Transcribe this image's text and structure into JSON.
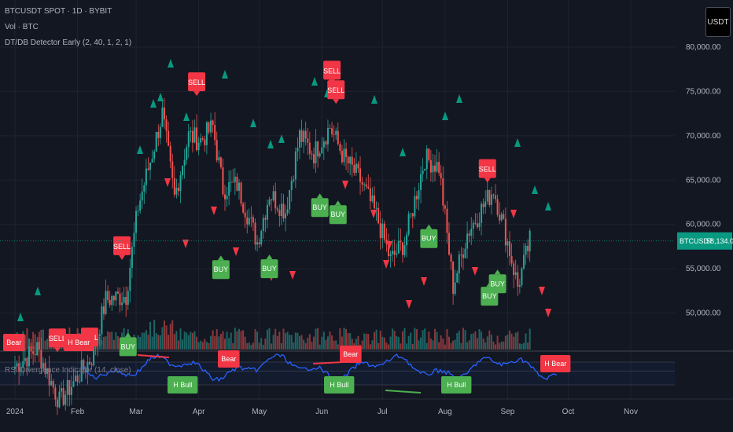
{
  "legend": {
    "symbol": "BTCUSDT SPOT · 1D · BYBIT",
    "volume": "Vol · BTC",
    "indicator": "DT/DB Detector Early (2, 40, 1, 2, 1)",
    "rsi": "RSI Divergence Indicator (14, close)"
  },
  "currency_button": "USDT",
  "price_tag": {
    "symbol": "BTCUSDT",
    "price": "58,134.02",
    "value": 58134.02
  },
  "colors": {
    "up": "#26a69a",
    "down": "#ef5350",
    "signal_green": "#4caf50",
    "signal_red": "#f23645",
    "rsi_line": "#2962ff",
    "tag": "#089981"
  },
  "chart_data": {
    "type": "candlestick",
    "title": "",
    "ylim": [
      45000,
      80000
    ],
    "y_ticks": [
      50000,
      55000,
      60000,
      65000,
      70000,
      75000,
      80000
    ],
    "y_tick_labels": [
      "50,000.00",
      "55,000.00",
      "60,000.00",
      "65,000.00",
      "70,000.00",
      "75,000.00",
      "80,000.00"
    ],
    "x_range": [
      "2024-01-01",
      "2024-11-15"
    ],
    "x_ticks": [
      {
        "date": "2024-01-01",
        "label": "2024"
      },
      {
        "date": "2024-02-01",
        "label": "Feb"
      },
      {
        "date": "2024-03-01",
        "label": "Mar"
      },
      {
        "date": "2024-04-01",
        "label": "Apr"
      },
      {
        "date": "2024-05-01",
        "label": "May"
      },
      {
        "date": "2024-06-01",
        "label": "Jun"
      },
      {
        "date": "2024-07-01",
        "label": "Jul"
      },
      {
        "date": "2024-08-01",
        "label": "Aug"
      },
      {
        "date": "2024-09-01",
        "label": "Sep"
      },
      {
        "date": "2024-10-01",
        "label": "Oct"
      },
      {
        "date": "2024-11-01",
        "label": "Nov"
      }
    ],
    "close_series": [
      {
        "date": "2024-01-01",
        "close": 44000
      },
      {
        "date": "2024-01-12",
        "close": 46000
      },
      {
        "date": "2024-01-23",
        "close": 40000
      },
      {
        "date": "2024-02-08",
        "close": 45000
      },
      {
        "date": "2024-02-15",
        "close": 51500
      },
      {
        "date": "2024-02-25",
        "close": 52000
      },
      {
        "date": "2024-03-02",
        "close": 62000
      },
      {
        "date": "2024-03-09",
        "close": 68000
      },
      {
        "date": "2024-03-14",
        "close": 72500
      },
      {
        "date": "2024-03-20",
        "close": 63000
      },
      {
        "date": "2024-03-27",
        "close": 70000
      },
      {
        "date": "2024-04-02",
        "close": 69500
      },
      {
        "date": "2024-04-08",
        "close": 71000
      },
      {
        "date": "2024-04-13",
        "close": 64000
      },
      {
        "date": "2024-04-20",
        "close": 64500
      },
      {
        "date": "2024-04-30",
        "close": 58000
      },
      {
        "date": "2024-05-06",
        "close": 63500
      },
      {
        "date": "2024-05-14",
        "close": 61500
      },
      {
        "date": "2024-05-21",
        "close": 70000
      },
      {
        "date": "2024-05-28",
        "close": 68000
      },
      {
        "date": "2024-06-05",
        "close": 71000
      },
      {
        "date": "2024-06-12",
        "close": 67500
      },
      {
        "date": "2024-06-20",
        "close": 65000
      },
      {
        "date": "2024-06-28",
        "close": 61000
      },
      {
        "date": "2024-07-05",
        "close": 56000
      },
      {
        "date": "2024-07-12",
        "close": 58000
      },
      {
        "date": "2024-07-22",
        "close": 67500
      },
      {
        "date": "2024-07-29",
        "close": 66500
      },
      {
        "date": "2024-08-05",
        "close": 53000
      },
      {
        "date": "2024-08-12",
        "close": 59000
      },
      {
        "date": "2024-08-25",
        "close": 64000
      },
      {
        "date": "2024-09-01",
        "close": 58000
      },
      {
        "date": "2024-09-06",
        "close": 53000
      },
      {
        "date": "2024-09-12",
        "close": 58134
      }
    ],
    "signals": [
      {
        "label": "SELL",
        "date": "2024-03-31",
        "price": 74500,
        "kind": "sell"
      },
      {
        "label": "SELL",
        "date": "2024-06-06",
        "price": 75800,
        "kind": "sell"
      },
      {
        "label": "SELL",
        "date": "2024-06-08",
        "price": 73600,
        "kind": "sell"
      },
      {
        "label": "SELL",
        "date": "2024-02-23",
        "price": 56000,
        "kind": "sell"
      },
      {
        "label": "SELL",
        "date": "2024-08-22",
        "price": 64700,
        "kind": "sell"
      },
      {
        "label": "BUY",
        "date": "2024-04-12",
        "price": 56500,
        "kind": "buy"
      },
      {
        "label": "BUY",
        "date": "2024-05-06",
        "price": 56600,
        "kind": "buy"
      },
      {
        "label": "BUY",
        "date": "2024-05-31",
        "price": 63500,
        "kind": "buy"
      },
      {
        "label": "BUY",
        "date": "2024-06-09",
        "price": 62700,
        "kind": "buy"
      },
      {
        "label": "BUY",
        "date": "2024-07-24",
        "price": 60000,
        "kind": "buy"
      },
      {
        "label": "BUY",
        "date": "2024-02-26",
        "price": 47800,
        "kind": "buy"
      },
      {
        "label": "BUY",
        "date": "2024-08-23",
        "price": 53500,
        "kind": "buy"
      },
      {
        "label": "BUY",
        "date": "2024-08-27",
        "price": 54900,
        "kind": "buy"
      },
      {
        "label": "SELL",
        "date": "2024-01-22",
        "price": 45600,
        "kind": "sell"
      },
      {
        "label": "SELL",
        "date": "2024-02-07",
        "price": 45700,
        "kind": "sell"
      }
    ],
    "volume_note": "Volume histogram in lower band of main pane",
    "rsi_signals": [
      {
        "label": "Bear",
        "date": "2024-01-06",
        "kind": "sell"
      },
      {
        "label": "H Bear",
        "date": "2024-01-25",
        "kind": "sell"
      },
      {
        "label": "Bear",
        "date": "2024-04-11",
        "kind": "sell"
      },
      {
        "label": "Bear",
        "date": "2024-06-06",
        "kind": "sell"
      },
      {
        "label": "H Bear",
        "date": "2024-09-12",
        "kind": "sell"
      },
      {
        "label": "H Bull",
        "date": "2024-03-12",
        "kind": "buy"
      },
      {
        "label": "H Bull",
        "date": "2024-06-01",
        "kind": "buy"
      },
      {
        "label": "H Bull",
        "date": "2024-07-28",
        "kind": "buy"
      }
    ]
  }
}
